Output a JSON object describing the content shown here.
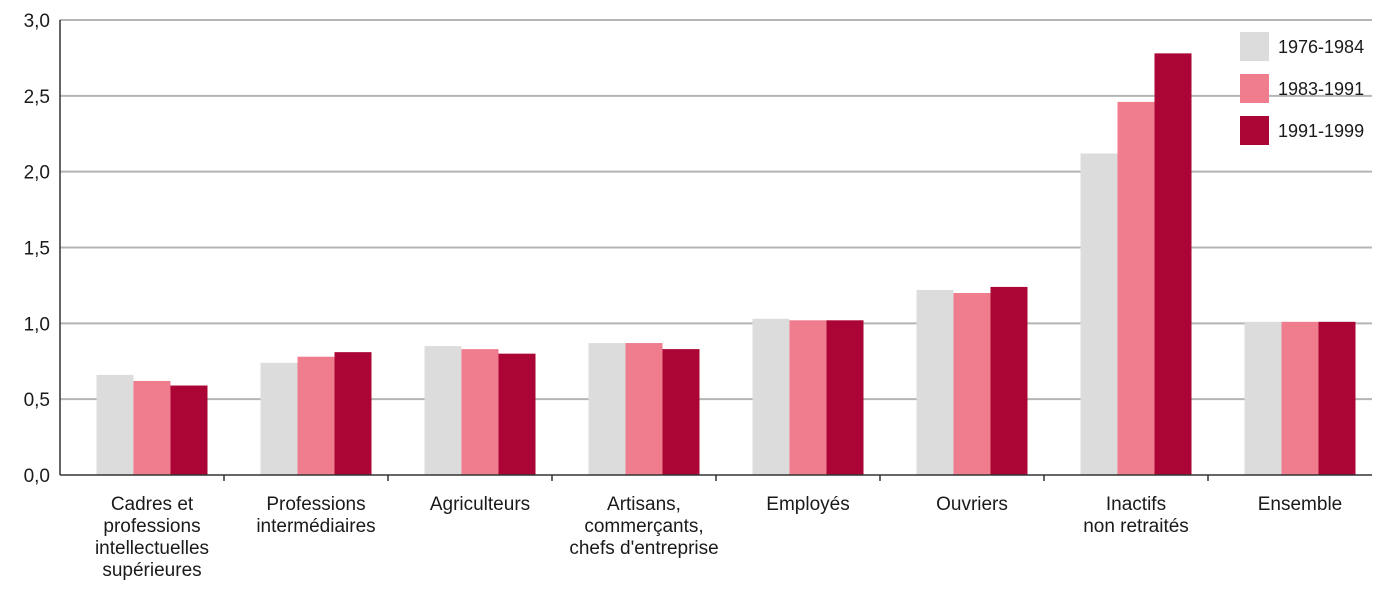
{
  "chart_data": {
    "type": "bar",
    "title": "",
    "xlabel": "",
    "ylabel": "",
    "ylim": [
      0,
      3.0
    ],
    "yticks": [
      "0,0",
      "0,5",
      "1,0",
      "1,5",
      "2,0",
      "2,5",
      "3,0"
    ],
    "yticks_values": [
      0,
      0.5,
      1.0,
      1.5,
      2.0,
      2.5,
      3.0
    ],
    "grid": true,
    "legend_position": "top-right",
    "categories": [
      [
        "Cadres et",
        "professions",
        "intellectuelles",
        "supérieures"
      ],
      [
        "Professions",
        "intermédiaires"
      ],
      [
        "Agriculteurs"
      ],
      [
        "Artisans,",
        "commerçants,",
        "chefs d'entreprise"
      ],
      [
        "Employés"
      ],
      [
        "Ouvriers"
      ],
      [
        "Inactifs",
        "non retraités"
      ],
      [
        "Ensemble"
      ]
    ],
    "series": [
      {
        "name": "1976-1984",
        "color": "#dcdcdc",
        "values": [
          0.66,
          0.74,
          0.85,
          0.87,
          1.03,
          1.22,
          2.12,
          1.01
        ]
      },
      {
        "name": "1983-1991",
        "color": "#ef7d8e",
        "values": [
          0.62,
          0.78,
          0.83,
          0.87,
          1.02,
          1.2,
          2.46,
          1.01
        ]
      },
      {
        "name": "1991-1999",
        "color": "#aa0535",
        "values": [
          0.59,
          0.81,
          0.8,
          0.83,
          1.02,
          1.24,
          2.78,
          1.01
        ]
      }
    ]
  }
}
